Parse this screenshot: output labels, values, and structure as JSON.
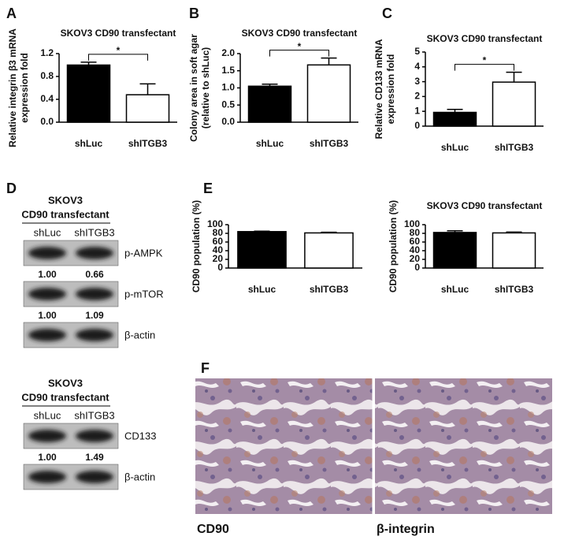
{
  "panels": [
    "A",
    "B",
    "C",
    "D",
    "E",
    "F"
  ],
  "chart_data": [
    {
      "type": "bar",
      "title": "SKOV3 CD90 transfectant",
      "ylabel": [
        "Relative integrin β3 mRNA",
        "expression fold"
      ],
      "categories": [
        "shLuc",
        "shITGB3"
      ],
      "values": [
        1.0,
        0.48
      ],
      "errors": [
        0.05,
        0.19
      ],
      "colors": [
        "#000000",
        "#ffffff"
      ],
      "ylim": [
        0,
        1.2
      ],
      "yticks": [
        {
          "value": 0,
          "label": "0.0"
        },
        0.4,
        0.8,
        1.2
      ],
      "annotation": "*"
    },
    {
      "type": "bar",
      "title": "SKOV3 CD90 transfectant",
      "ylabel": [
        "Colony area in soft agar",
        "(relative to shLuc)"
      ],
      "categories": [
        "shLuc",
        "shITGB3"
      ],
      "values": [
        1.05,
        1.67
      ],
      "errors": [
        0.06,
        0.2
      ],
      "colors": [
        "#000000",
        "#ffffff"
      ],
      "ylim": [
        0,
        2.0
      ],
      "yticks": [
        {
          "value": 0,
          "label": "0.0"
        },
        0.5,
        {
          "value": 1,
          "label": "1.0"
        },
        1.5,
        {
          "value": 2,
          "label": "2.0"
        }
      ],
      "annotation": "*"
    },
    {
      "type": "bar",
      "title": "SKOV3 CD90 transfectant",
      "ylabel": [
        "Relative CD133 mRNA",
        "expression fold"
      ],
      "categories": [
        "shLuc",
        "shITGB3"
      ],
      "values": [
        0.93,
        2.97
      ],
      "errors": [
        0.2,
        0.67
      ],
      "colors": [
        "#000000",
        "#ffffff"
      ],
      "ylim": [
        0,
        5
      ],
      "yticks": [
        0,
        1,
        2,
        3,
        4,
        5
      ],
      "annotation": "*"
    },
    {
      "type": "bar",
      "ylabel": [
        "CD90 population (%)"
      ],
      "categories": [
        "shLuc",
        "shITGB3"
      ],
      "values": [
        84,
        81
      ],
      "errors": [
        1,
        1.5
      ],
      "colors": [
        "#000000",
        "#ffffff"
      ],
      "ylim": [
        0,
        100
      ],
      "yticks": [
        0,
        20,
        40,
        60,
        80,
        100
      ]
    },
    {
      "type": "bar",
      "title": "SKOV3 CD90 transfectant",
      "ylabel": [
        "CD90 population (%)"
      ],
      "categories": [
        "shLuc",
        "shITGB3"
      ],
      "values": [
        82,
        81
      ],
      "errors": [
        4,
        2
      ],
      "colors": [
        "#000000",
        "#ffffff"
      ],
      "ylim": [
        0,
        100
      ],
      "yticks": [
        0,
        20,
        40,
        60,
        80,
        100
      ]
    }
  ],
  "blots": [
    {
      "header": [
        "SKOV3",
        "CD90 transfectant"
      ],
      "lanes": [
        "shLuc",
        "shITGB3"
      ],
      "rows": [
        {
          "label": "p-AMPK",
          "quant": [
            "1.00",
            "0.66"
          ]
        },
        {
          "label": "p-mTOR",
          "quant": [
            "1.00",
            "1.09"
          ]
        },
        {
          "label": "β-actin"
        }
      ]
    },
    {
      "header": [
        "SKOV3",
        "CD90 transfectant"
      ],
      "lanes": [
        "shLuc",
        "shITGB3"
      ],
      "rows": [
        {
          "label": "CD133",
          "quant": [
            "1.00",
            "1.49"
          ]
        },
        {
          "label": "β-actin"
        }
      ]
    }
  ],
  "images": [
    {
      "caption": "CD90"
    },
    {
      "caption": "β-integrin"
    }
  ]
}
